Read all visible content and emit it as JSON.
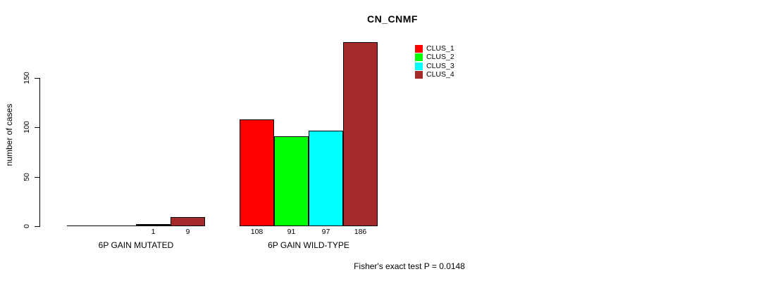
{
  "chart_data": {
    "type": "bar",
    "title": "CN_CNMF",
    "ylabel": "number of cases",
    "xlabel": "",
    "ylim": [
      0,
      150
    ],
    "yticks": [
      0,
      50,
      100,
      150
    ],
    "grid": false,
    "legend_position": "top-right",
    "categories": [
      "6P GAIN MUTATED",
      "6P GAIN WILD-TYPE"
    ],
    "series": [
      {
        "name": "CLUS_1",
        "color": "#FF0000",
        "values": [
          0,
          108
        ]
      },
      {
        "name": "CLUS_2",
        "color": "#00FF00",
        "values": [
          0,
          91
        ]
      },
      {
        "name": "CLUS_3",
        "color": "#00FFFF",
        "values": [
          1,
          97
        ]
      },
      {
        "name": "CLUS_4",
        "color": "#A52A2A",
        "values": [
          9,
          186
        ]
      }
    ],
    "bar_value_labels": [
      [
        "",
        "",
        "1",
        "9"
      ],
      [
        "108",
        "91",
        "97",
        "186"
      ]
    ],
    "footer": "Fisher's exact test P = 0.0148"
  }
}
